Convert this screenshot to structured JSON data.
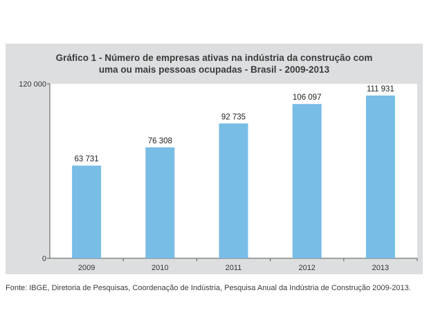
{
  "title_lines": [
    "Gráfico 1 - Número de empresas ativas na indústria da construção com",
    "uma ou mais pessoas ocupadas - Brasil - 2009-2013"
  ],
  "source": "Fonte: IBGE, Diretoria de Pesquisas, Coordenação de Indústria, Pesquisa Anual da Indústria de Construção 2009-2013.",
  "colors": {
    "bar": "#78bde6",
    "panel": "#dcdee0"
  },
  "chart_data": {
    "type": "bar",
    "categories": [
      "2009",
      "2010",
      "2011",
      "2012",
      "2013"
    ],
    "values": [
      63731,
      76308,
      92735,
      106097,
      111931
    ],
    "value_labels": [
      "63 731",
      "76 308",
      "92 735",
      "106 097",
      "111 931"
    ],
    "ytick_values": [
      0,
      120000
    ],
    "ytick_labels": [
      "0",
      "120 000"
    ],
    "ylim": [
      0,
      120000
    ],
    "xlabel": "",
    "ylabel": "",
    "grid": false
  }
}
